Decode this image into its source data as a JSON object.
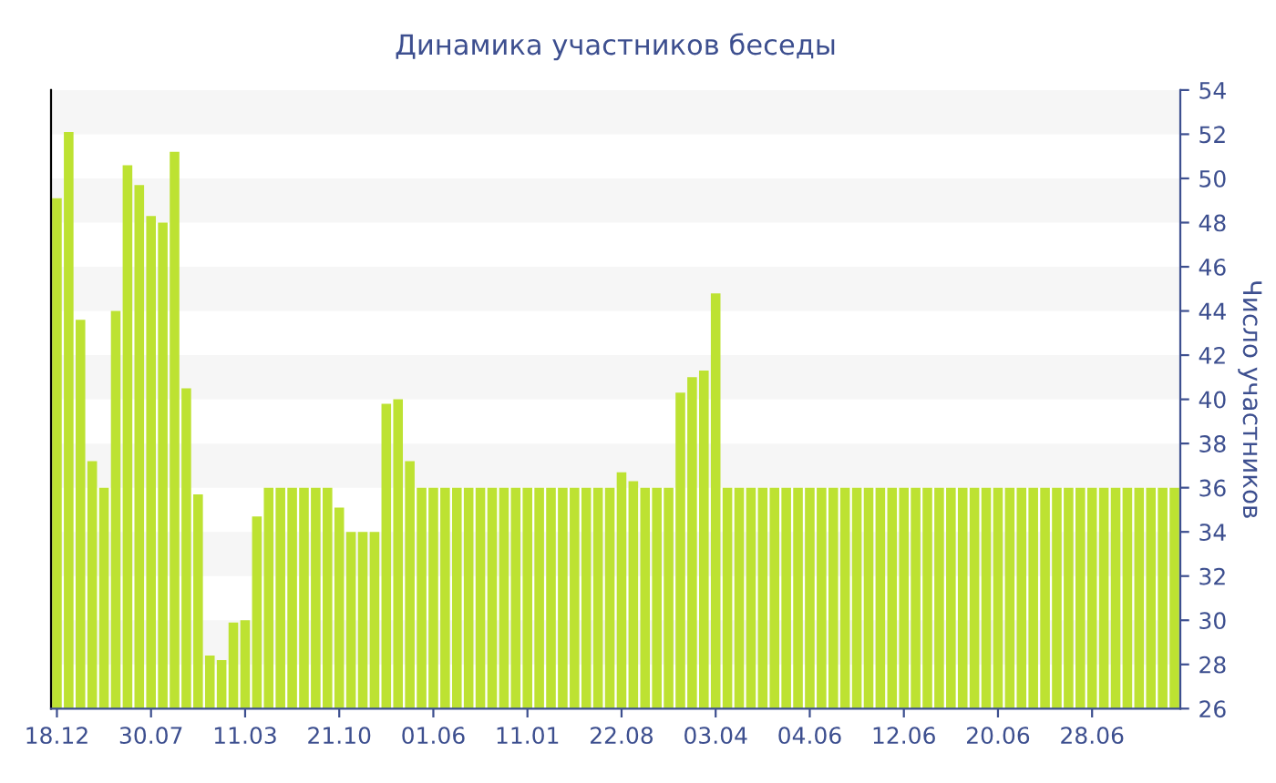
{
  "chart_data": {
    "type": "bar",
    "title": "Динамика участников беседы",
    "ylabel": "Число участников",
    "categories": [
      "18.12",
      null,
      null,
      null,
      null,
      null,
      null,
      null,
      "30.07",
      null,
      null,
      null,
      null,
      null,
      null,
      null,
      "11.03",
      null,
      null,
      null,
      null,
      null,
      null,
      null,
      "21.10",
      null,
      null,
      null,
      null,
      null,
      null,
      null,
      "01.06",
      null,
      null,
      null,
      null,
      null,
      null,
      null,
      "11.01",
      null,
      null,
      null,
      null,
      null,
      null,
      null,
      "22.08",
      null,
      null,
      null,
      null,
      null,
      null,
      null,
      "03.04",
      null,
      null,
      null,
      null,
      null,
      null,
      null,
      "04.06",
      null,
      null,
      null,
      null,
      null,
      null,
      null,
      "12.06",
      null,
      null,
      null,
      null,
      null,
      null,
      null,
      "20.06",
      null,
      null,
      null,
      null,
      null,
      null,
      null,
      "28.06",
      null,
      null,
      null,
      null,
      null,
      null,
      null
    ],
    "values": [
      49.1,
      52.1,
      43.6,
      37.2,
      36,
      44.0,
      50.6,
      49.7,
      48.3,
      48.0,
      51.2,
      40.5,
      35.7,
      28.4,
      28.2,
      29.9,
      30.0,
      34.7,
      36,
      36,
      36,
      36,
      36,
      36,
      35.1,
      34,
      34,
      34,
      39.8,
      40.0,
      37.2,
      36,
      36,
      36,
      36,
      36,
      36,
      36,
      36,
      36,
      36,
      36,
      36,
      36,
      36,
      36,
      36,
      36,
      36.7,
      36.3,
      36,
      36,
      36,
      40.3,
      41.0,
      41.3,
      44.8,
      36,
      36,
      36,
      36,
      36,
      36,
      36,
      36,
      36,
      36,
      36,
      36,
      36,
      36,
      36,
      36,
      36,
      36,
      36,
      36,
      36,
      36,
      36,
      36,
      36,
      36,
      36,
      36,
      36,
      36,
      36,
      36,
      36,
      36,
      36,
      36,
      36,
      36,
      36
    ],
    "color": "#bde232",
    "ylim": [
      26,
      54
    ],
    "yticks": [
      26,
      28,
      30,
      32,
      34,
      36,
      38,
      40,
      42,
      44,
      46,
      48,
      50,
      52,
      54
    ],
    "grid": false,
    "bands": [
      {
        "axis": "y",
        "from": 52,
        "to": 54,
        "color": "#f6f6f6"
      },
      {
        "axis": "y",
        "from": 48,
        "to": 50,
        "color": "#f6f6f6"
      },
      {
        "axis": "y",
        "from": 44,
        "to": 46,
        "color": "#f6f6f6"
      },
      {
        "axis": "y",
        "from": 40,
        "to": 42,
        "color": "#f6f6f6"
      },
      {
        "axis": "y",
        "from": 36,
        "to": 38,
        "color": "#f6f6f6"
      },
      {
        "axis": "y",
        "from": 32,
        "to": 34,
        "color": "#f6f6f6"
      },
      {
        "axis": "y",
        "from": 28,
        "to": 30,
        "color": "#f6f6f6"
      }
    ]
  }
}
